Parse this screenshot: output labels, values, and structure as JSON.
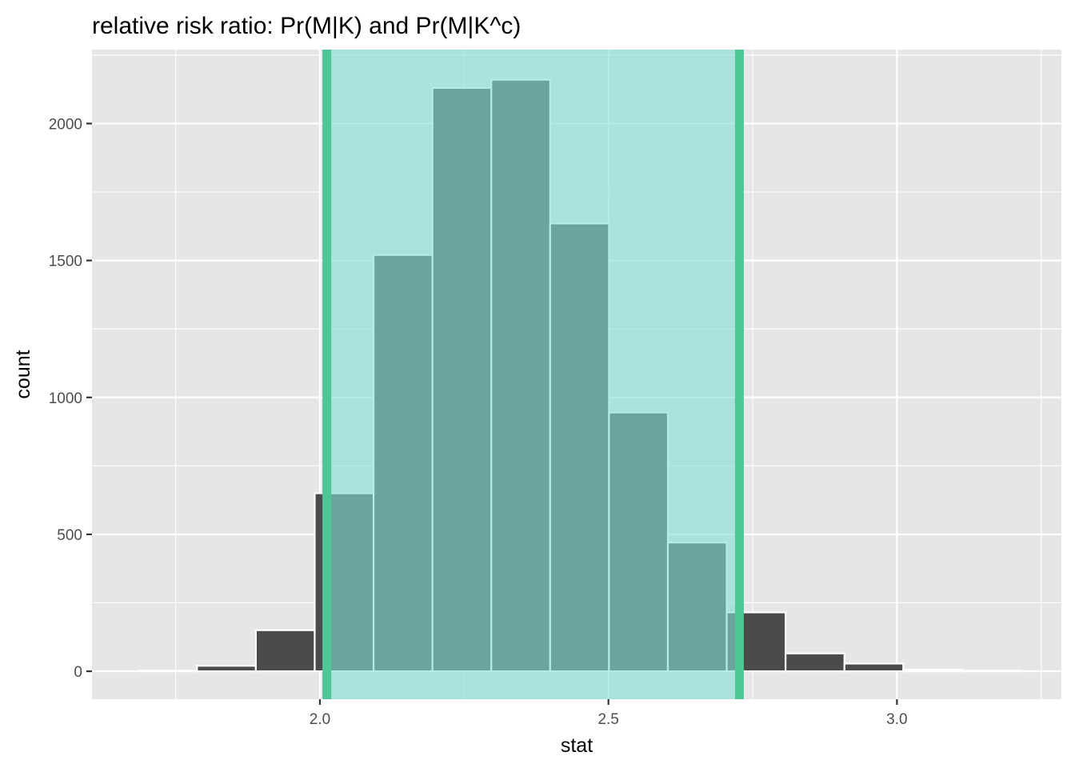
{
  "chart_data": {
    "type": "bar",
    "title": "relative risk ratio: Pr(M|K) and Pr(M|K^c)",
    "xlabel": "stat",
    "ylabel": "count",
    "xlim": [
      1.605,
      3.285
    ],
    "ylim": [
      -102,
      2270
    ],
    "x_ticks": [
      {
        "value": 2.0,
        "label": "2.0"
      },
      {
        "value": 2.5,
        "label": "2.5"
      },
      {
        "value": 3.0,
        "label": "3.0"
      }
    ],
    "y_ticks": [
      {
        "value": 0,
        "label": "0"
      },
      {
        "value": 500,
        "label": "500"
      },
      {
        "value": 1000,
        "label": "1000"
      },
      {
        "value": 1500,
        "label": "1500"
      },
      {
        "value": 2000,
        "label": "2000"
      }
    ],
    "bin_width": 0.102,
    "bins": [
      {
        "x": 1.736,
        "count": 2
      },
      {
        "x": 1.838,
        "count": 20
      },
      {
        "x": 1.94,
        "count": 150
      },
      {
        "x": 2.042,
        "count": 650
      },
      {
        "x": 2.144,
        "count": 1520
      },
      {
        "x": 2.246,
        "count": 2130
      },
      {
        "x": 2.348,
        "count": 2160
      },
      {
        "x": 2.45,
        "count": 1635
      },
      {
        "x": 2.552,
        "count": 945
      },
      {
        "x": 2.654,
        "count": 470
      },
      {
        "x": 2.756,
        "count": 215
      },
      {
        "x": 2.858,
        "count": 65
      },
      {
        "x": 2.96,
        "count": 28
      },
      {
        "x": 3.062,
        "count": 6
      },
      {
        "x": 3.164,
        "count": 2
      }
    ],
    "confidence_interval": {
      "lower": 2.012,
      "upper": 2.727
    },
    "grid": true,
    "legend": "none",
    "colors": {
      "panel_background": "#e6e6e6",
      "grid_line": "#ffffff",
      "bar_fill": "#4b4b4b",
      "bar_outline": "#ffffff",
      "shade_fill": "#7fe0d2",
      "ci_line": "#4ec795"
    }
  }
}
